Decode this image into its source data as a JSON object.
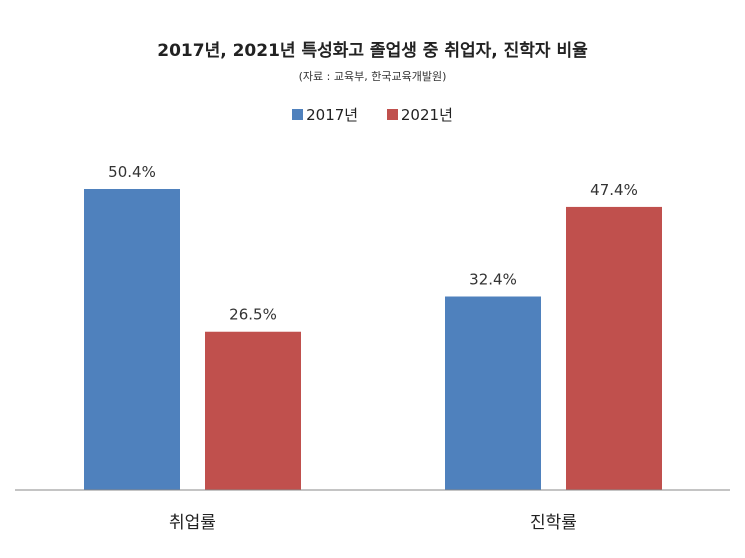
{
  "chart_data": {
    "type": "bar",
    "title": "2017년, 2021년 특성화고 졸업생 중 취업자, 진학자 비율",
    "subtitle": "(자료 : 교육부, 한국교육개발원)",
    "categories": [
      "취업률",
      "진학률"
    ],
    "series": [
      {
        "name": "2017년",
        "color": "#4F81BD",
        "values": [
          50.4,
          32.4
        ],
        "labels": [
          "50.4%",
          "32.4%"
        ]
      },
      {
        "name": "2021년",
        "color": "#C0504D",
        "values": [
          26.5,
          47.4
        ],
        "labels": [
          "26.5%",
          "47.4%"
        ]
      }
    ],
    "ylim": [
      0,
      50.4
    ],
    "xlabel": "",
    "ylabel": "",
    "grid": false,
    "legend_position": "top-center"
  }
}
